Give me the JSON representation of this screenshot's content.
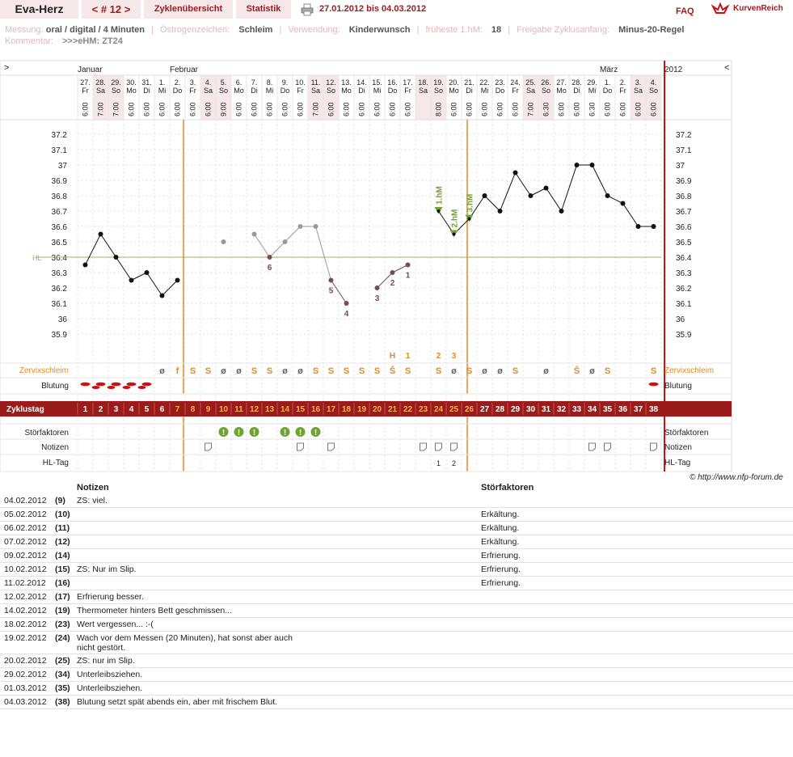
{
  "app": {
    "title": "Eva-Herz",
    "cycle_nav": "< # 12 >",
    "tab_cycles": "Zyklenübersicht",
    "tab_stats": "Statistik",
    "date_range": "27.01.2012 bis 04.03.2012",
    "faq": "FAQ",
    "brand": "KurvenReich"
  },
  "meta": {
    "messung_label": "Messung:",
    "messung": "oral / digital / 4 Minuten",
    "oestrogen_label": "Östrogenzeichen:",
    "oestrogen": "Schleim",
    "verwendung_label": "Verwendung:",
    "verwendung": "Kinderwunsch",
    "hm_label": "früheste 1.hM:",
    "hm": "18",
    "freigabe_label": "Freigabe Zyklusanfang:",
    "freigabe": "Minus-20-Regel",
    "kommentar_label": "Kommentar:",
    "kommentar": ">>>eHM: ZT24",
    "sep": "|"
  },
  "chart_data": {
    "type": "line",
    "months": [
      {
        "label": "Januar",
        "col": 0
      },
      {
        "label": "Februar",
        "col": 6
      },
      {
        "label": "März",
        "col": 34
      }
    ],
    "year": "2012",
    "dates": [
      "27.",
      "28.",
      "29.",
      "30.",
      "31.",
      "1.",
      "2.",
      "3.",
      "4.",
      "5.",
      "6.",
      "7.",
      "8.",
      "9.",
      "10.",
      "11.",
      "12.",
      "13.",
      "14.",
      "15.",
      "16.",
      "17.",
      "18.",
      "19.",
      "20.",
      "21.",
      "22.",
      "23.",
      "24.",
      "25.",
      "26.",
      "27.",
      "28.",
      "29.",
      "1.",
      "2.",
      "3.",
      "4."
    ],
    "weekdays": [
      "Fr",
      "Sa",
      "So",
      "Mo",
      "Di",
      "Mi",
      "Do",
      "Fr",
      "Sa",
      "So",
      "Mo",
      "Di",
      "Mi",
      "Do",
      "Fr",
      "Sa",
      "So",
      "Mo",
      "Di",
      "Mi",
      "Do",
      "Fr",
      "Sa",
      "So",
      "Mo",
      "Di",
      "Mi",
      "Do",
      "Fr",
      "Sa",
      "So",
      "Mo",
      "Di",
      "Mi",
      "Do",
      "Fr",
      "Sa",
      "So"
    ],
    "times": [
      "6:00",
      "7:00",
      "7:00",
      "6:00",
      "6:00",
      "6:00",
      "6:00",
      "6:00",
      "6:00",
      "9:00",
      "6:00",
      "6:00",
      "6:00",
      "6:00",
      "6:00",
      "7:00",
      "6:00",
      "6:00",
      "6:00",
      "6:00",
      "6:00",
      "6:00",
      "",
      "8:00",
      "6:00",
      "6:00",
      "6:00",
      "6:00",
      "6:00",
      "7:00",
      "6:30",
      "6:00",
      "6:00",
      "6:30",
      "6:00",
      "6:00",
      "6:00",
      "6:00"
    ],
    "cycle_days": [
      "1",
      "2",
      "3",
      "4",
      "5",
      "6",
      "7",
      "8",
      "9",
      "10",
      "11",
      "12",
      "13",
      "14",
      "15",
      "16",
      "17",
      "18",
      "19",
      "20",
      "21",
      "22",
      "23",
      "24",
      "25",
      "26",
      "27",
      "28",
      "29",
      "30",
      "31",
      "32",
      "33",
      "34",
      "35",
      "36",
      "37",
      "38"
    ],
    "temps": [
      36.35,
      36.55,
      36.4,
      36.25,
      36.3,
      36.15,
      36.25,
      null,
      null,
      36.5,
      null,
      36.55,
      36.4,
      36.5,
      36.6,
      36.6,
      36.25,
      36.1,
      null,
      36.2,
      36.3,
      36.35,
      null,
      36.7,
      36.55,
      36.65,
      36.8,
      36.7,
      36.95,
      36.8,
      36.85,
      36.7,
      37.0,
      37.0,
      36.8,
      36.75,
      36.6,
      36.6
    ],
    "point_kind": [
      "b",
      "b",
      "b",
      "b",
      "b",
      "b",
      "b",
      "",
      "",
      "g",
      "",
      "g",
      "m",
      "g",
      "g",
      "g",
      "m",
      "m",
      "",
      "m",
      "m",
      "m",
      "",
      "hm",
      "hm",
      "hm",
      "b",
      "b",
      "b",
      "b",
      "b",
      "b",
      "b",
      "b",
      "b",
      "b",
      "b",
      "b"
    ],
    "point_labels": {
      "12": "6",
      "16": "5",
      "17": "4",
      "19": "3",
      "20": "2",
      "21": "1"
    },
    "hm_labels": {
      "23": "1.hM",
      "24": "2.hM",
      "25": "3.hM"
    },
    "y_ticks": [
      "37.2",
      "37.1",
      "37",
      "36.9",
      "36.8",
      "36.7",
      "36.6",
      "36.5",
      "36.4",
      "36.3",
      "36.2",
      "36.1",
      "36",
      "35.9"
    ],
    "ylim": [
      35.85,
      37.25
    ],
    "hl_label": "HL",
    "hl_value": 36.4,
    "cycle_marker_cols": [
      6,
      25
    ],
    "mucus_top": {
      "20": "H",
      "21": "1",
      "23": "2",
      "24": "3"
    },
    "mucus": [
      "",
      "",
      "",
      "",
      "",
      "ø",
      "f",
      "S",
      "S",
      "ø",
      "ø",
      "S",
      "S",
      "ø",
      "ø",
      "S",
      "S",
      "S",
      "S",
      "S",
      "S̄",
      "S",
      "",
      "S",
      "ø",
      "S",
      "ø",
      "ø",
      "S",
      "",
      "ø",
      "",
      "S̄",
      "ø",
      "S",
      "",
      "",
      "S"
    ],
    "bleeding_cols": [
      0,
      1,
      2,
      3,
      4,
      37
    ],
    "disturb_cols": [
      9,
      10,
      11,
      13,
      14,
      15
    ],
    "note_cols": [
      8,
      14,
      16,
      22,
      23,
      24,
      33,
      34,
      37
    ],
    "hl_day_marks": {
      "23": "1",
      "24": "2"
    },
    "row_labels": {
      "zervix": "Zervixschleim",
      "blutung": "Blutung",
      "zyklustag": "Zyklustag",
      "stoer": "Störfaktoren",
      "notizen": "Notizen",
      "hltag": "HL-Tag"
    },
    "nav_left": ">",
    "nav_right": "<"
  },
  "copyright": "© http://www.nfp-forum.de",
  "notes_table": {
    "col_notes": "Notizen",
    "col_stoer": "Störfaktoren",
    "rows": [
      {
        "date": "04.02.2012",
        "day": "(9)",
        "note": "ZS: viel.",
        "stoer": ""
      },
      {
        "date": "05.02.2012",
        "day": "(10)",
        "note": "",
        "stoer": "Erkältung."
      },
      {
        "date": "06.02.2012",
        "day": "(11)",
        "note": "",
        "stoer": "Erkältung."
      },
      {
        "date": "07.02.2012",
        "day": "(12)",
        "note": "",
        "stoer": "Erkältung."
      },
      {
        "date": "09.02.2012",
        "day": "(14)",
        "note": "",
        "stoer": "Erfrierung."
      },
      {
        "date": "10.02.2012",
        "day": "(15)",
        "note": "ZS: Nur im Slip.",
        "stoer": "Erfrierung."
      },
      {
        "date": "11.02.2012",
        "day": "(16)",
        "note": "",
        "stoer": "Erfrierung."
      },
      {
        "date": "12.02.2012",
        "day": "(17)",
        "note": "Erfrierung besser.",
        "stoer": ""
      },
      {
        "date": "14.02.2012",
        "day": "(19)",
        "note": "Thermometer hinters Bett geschmissen...",
        "stoer": ""
      },
      {
        "date": "18.02.2012",
        "day": "(23)",
        "note": "Wert vergessen... :-(",
        "stoer": ""
      },
      {
        "date": "19.02.2012",
        "day": "(24)",
        "note": "Wach vor dem Messen (20 Minuten), hat sonst aber auch",
        "note2": "nicht gestört.",
        "stoer": ""
      },
      {
        "date": "20.02.2012",
        "day": "(25)",
        "note": "ZS: nur im Slip.",
        "stoer": ""
      },
      {
        "date": "29.02.2012",
        "day": "(34)",
        "note": "Unterleibsziehen.",
        "stoer": ""
      },
      {
        "date": "01.03.2012",
        "day": "(35)",
        "note": "Unterleibsziehen.",
        "stoer": ""
      },
      {
        "date": "04.03.2012",
        "day": "(38)",
        "note": "Blutung setzt spät abends ein, aber mit frischem Blut.",
        "stoer": ""
      }
    ]
  },
  "colors": {
    "accent": "#9b1b1b",
    "orange": "#e38a1f",
    "green": "#6aa630",
    "hl_line": "#8cb86a",
    "red_line": "#cc1111",
    "mauve": "#7a4a55",
    "grey_point": "#888888"
  }
}
